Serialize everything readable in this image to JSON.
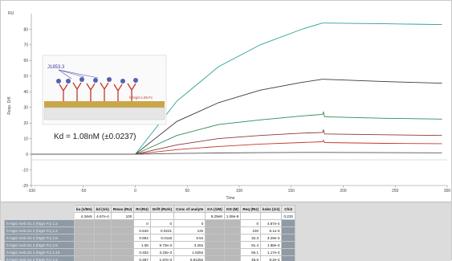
{
  "chart_data": {
    "type": "line",
    "xlabel": "Time",
    "ylabel": "Resp. Diff.",
    "y_unit": "RU",
    "xlim": [
      -100,
      300
    ],
    "ylim": [
      -20,
      90
    ],
    "x_ticks": [
      -100,
      -50,
      0,
      50,
      100,
      150,
      200,
      250,
      300
    ],
    "y_ticks": [
      -20,
      -10,
      0,
      10,
      20,
      30,
      40,
      50,
      60,
      70,
      80
    ],
    "grid": false,
    "annotation": "Kd = 1.08nM (±0.0237)",
    "inset_labels": {
      "left": "J1853.3",
      "right": "h-hIgG-L29-Fc"
    },
    "series": [
      {
        "color": "#2aa198",
        "values": [
          [
            -100,
            0
          ],
          [
            -30,
            0
          ],
          [
            0,
            0
          ],
          [
            40,
            34
          ],
          [
            80,
            56
          ],
          [
            120,
            70
          ],
          [
            160,
            80
          ],
          [
            180,
            84
          ],
          [
            181,
            84
          ],
          [
            240,
            83.5
          ],
          [
            295,
            83
          ]
        ]
      },
      {
        "color": "#3a3a3a",
        "values": [
          [
            -100,
            0
          ],
          [
            -30,
            0
          ],
          [
            0,
            0
          ],
          [
            40,
            21
          ],
          [
            80,
            33
          ],
          [
            120,
            41
          ],
          [
            160,
            46
          ],
          [
            180,
            48
          ],
          [
            181,
            48
          ],
          [
            240,
            46.5
          ],
          [
            295,
            45.5
          ]
        ]
      },
      {
        "color": "#2e8b57",
        "values": [
          [
            -100,
            0
          ],
          [
            -30,
            0
          ],
          [
            0,
            0
          ],
          [
            40,
            12
          ],
          [
            80,
            19
          ],
          [
            120,
            22
          ],
          [
            160,
            24.5
          ],
          [
            180,
            25.5
          ],
          [
            181,
            27
          ],
          [
            182,
            24
          ],
          [
            240,
            23
          ],
          [
            295,
            22.5
          ]
        ]
      },
      {
        "color": "#8b3a3a",
        "values": [
          [
            -100,
            0
          ],
          [
            -30,
            0
          ],
          [
            0,
            0
          ],
          [
            40,
            6
          ],
          [
            80,
            10
          ],
          [
            120,
            12
          ],
          [
            160,
            13.5
          ],
          [
            180,
            14
          ],
          [
            181,
            15.5
          ],
          [
            182,
            13
          ],
          [
            240,
            12.5
          ],
          [
            295,
            12
          ]
        ]
      },
      {
        "color": "#c0392b",
        "values": [
          [
            -100,
            0
          ],
          [
            -30,
            0
          ],
          [
            0,
            0
          ],
          [
            40,
            3
          ],
          [
            80,
            5
          ],
          [
            120,
            6.5
          ],
          [
            160,
            7.5
          ],
          [
            180,
            8
          ],
          [
            181,
            9
          ],
          [
            182,
            7.5
          ],
          [
            240,
            7
          ],
          [
            295,
            6.8
          ]
        ]
      },
      {
        "color": "#555555",
        "values": [
          [
            -100,
            0
          ],
          [
            -30,
            0
          ],
          [
            0,
            0
          ],
          [
            40,
            0.5
          ],
          [
            80,
            0.8
          ],
          [
            120,
            1
          ],
          [
            160,
            1.2
          ],
          [
            180,
            1.2
          ],
          [
            181,
            1.2
          ],
          [
            240,
            1
          ],
          [
            295,
            0.9
          ]
        ]
      }
    ]
  },
  "table": {
    "headers": [
      "",
      "ka (1/Ms)",
      "kd (1/s)",
      "Rmax (RU)",
      "RI (RU)",
      "Drift (RU/s)",
      "Conc of analyte",
      "KA (1/M)",
      "KD (M)",
      "Req (RU)",
      "kobs (1/s)",
      "Chi2"
    ],
    "rows": [
      [
        "",
        "4.34e5",
        "4.67e-4",
        "100",
        "",
        "",
        "",
        "9.29e8",
        "1.08e-9",
        "",
        "",
        "0.232"
      ],
      [
        "h-hIgG mAb S1 2 (hIgG Fc) 1:2",
        "",
        "",
        "",
        "0",
        "0",
        "0",
        "",
        "",
        "0",
        "4.67e-4",
        ""
      ],
      [
        "h-hIgG mAb S1 2 (hIgG Fc) 1:4",
        "",
        "",
        "",
        "0.633",
        "0.0221",
        "13n",
        "",
        "",
        "100",
        "6.1e-3",
        ""
      ],
      [
        "h-hIgG mAb S1 2 (hIgG Fc) 1:8",
        "",
        "",
        "",
        "0.954",
        "0.0118",
        "6.5n",
        "",
        "",
        "32.3",
        "3.29e-3",
        ""
      ],
      [
        "h-hIgG mAb S1 2 (hIgG Fc) 1:6",
        "",
        "",
        "",
        "1.08",
        "9.73e-3",
        "3.26n",
        "",
        "",
        "81.4",
        "1.88e-3",
        ""
      ],
      [
        "h-hIgG mAb S1 2 (hIgG Fc) 1:10",
        "",
        "",
        "",
        "0.453",
        "3.23e-3",
        "1.625n",
        "",
        "",
        "65.1",
        "1.17e-3",
        ""
      ],
      [
        "h-hIgG mAb S1 2 (hIgG Fc) 1:2",
        "",
        "",
        "",
        "0.367",
        "1.67e-3",
        "0.8125n",
        "",
        "",
        "46.6",
        "8.2e-4",
        ""
      ]
    ]
  }
}
